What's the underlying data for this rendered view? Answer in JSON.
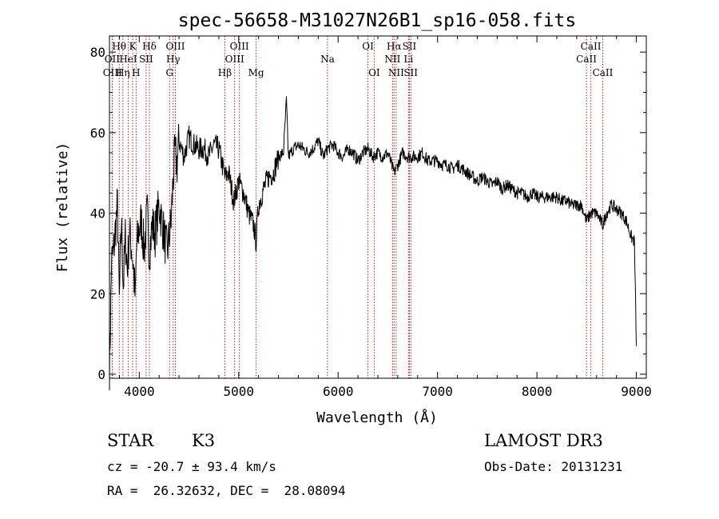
{
  "chart_data": {
    "type": "line",
    "title": "spec-56658-M31027N26B1_sp16-058.fits",
    "xlabel": "Wavelength (Å)",
    "ylabel": "Flux (relative)",
    "xlim": [
      3700,
      9100
    ],
    "ylim": [
      -1,
      84
    ],
    "xticks": [
      4000,
      5000,
      6000,
      7000,
      8000,
      9000
    ],
    "xtick_labels": [
      "4000",
      "5000",
      "6000",
      "7000",
      "8000",
      "9000"
    ],
    "yticks": [
      0,
      20,
      40,
      60,
      80
    ],
    "ytick_labels": [
      "0",
      "20",
      "40",
      "60",
      "80"
    ],
    "grid": false,
    "spectrum": {
      "x": [
        3700,
        3710,
        3720,
        3740,
        3760,
        3780,
        3800,
        3820,
        3840,
        3860,
        3880,
        3900,
        3920,
        3940,
        3960,
        3970,
        3990,
        4020,
        4050,
        4080,
        4101,
        4130,
        4160,
        4200,
        4240,
        4280,
        4300,
        4320,
        4340,
        4360,
        4380,
        4400,
        4450,
        4500,
        4550,
        4600,
        4650,
        4700,
        4750,
        4800,
        4861,
        4900,
        4950,
        5000,
        5050,
        5100,
        5150,
        5175,
        5200,
        5250,
        5300,
        5350,
        5400,
        5450,
        5480,
        5500,
        5550,
        5600,
        5650,
        5700,
        5750,
        5800,
        5850,
        5893,
        5950,
        6000,
        6050,
        6100,
        6150,
        6200,
        6250,
        6300,
        6350,
        6400,
        6450,
        6500,
        6563,
        6600,
        6650,
        6700,
        6750,
        6800,
        6850,
        6900,
        6950,
        7000,
        7050,
        7100,
        7150,
        7200,
        7250,
        7300,
        7350,
        7400,
        7450,
        7500,
        7550,
        7600,
        7650,
        7700,
        7750,
        7800,
        7850,
        7900,
        7950,
        8000,
        8050,
        8100,
        8150,
        8200,
        8250,
        8300,
        8350,
        8400,
        8450,
        8498,
        8542,
        8600,
        8662,
        8700,
        8750,
        8800,
        8850,
        8900,
        8950,
        8980,
        9000
      ],
      "y": [
        2,
        12,
        28,
        30,
        36,
        42,
        18,
        38,
        22,
        34,
        26,
        35,
        32,
        27,
        18,
        30,
        35,
        38,
        31,
        40,
        30,
        37,
        35,
        42,
        36,
        30,
        34,
        38,
        48,
        55,
        52,
        58,
        54,
        59,
        57,
        56,
        56,
        54,
        57,
        56,
        49,
        50,
        43,
        48,
        45,
        40,
        37,
        33,
        42,
        46,
        49,
        50,
        54,
        55,
        68,
        54,
        56,
        57,
        56,
        55,
        56,
        58,
        54,
        56,
        57,
        55,
        54,
        56,
        55,
        53,
        55,
        56,
        54,
        55,
        54,
        55,
        50,
        52,
        55,
        54,
        54,
        54,
        55,
        53,
        53,
        53,
        52,
        52,
        51,
        52,
        51,
        50,
        49,
        48,
        49,
        48,
        47,
        48,
        46,
        47,
        46,
        45,
        45,
        44,
        45,
        44,
        44,
        44,
        44,
        44,
        43,
        43,
        42,
        42,
        42,
        38,
        40,
        40,
        37,
        40,
        42,
        41,
        40,
        38,
        34,
        33,
        7
      ]
    },
    "lines": [
      {
        "label": "Hθ",
        "x": 3798,
        "row": 1
      },
      {
        "label": "OII",
        "x": 3727,
        "row": 2
      },
      {
        "label": "OIII",
        "x": 3730,
        "row": 3
      },
      {
        "label": "Hη",
        "x": 3835,
        "row": 3
      },
      {
        "label": "HeI",
        "x": 3889,
        "row": 2
      },
      {
        "label": "K",
        "x": 3934,
        "row": 1
      },
      {
        "label": "SII",
        "x": 4069,
        "row": 2
      },
      {
        "label": "H",
        "x": 3968,
        "row": 3
      },
      {
        "label": "Hδ",
        "x": 4102,
        "row": 1
      },
      {
        "label": "OIII",
        "x": 4363,
        "row": 1
      },
      {
        "label": "Hγ",
        "x": 4341,
        "row": 2
      },
      {
        "label": "G",
        "x": 4305,
        "row": 3
      },
      {
        "label": "OIII",
        "x": 5007,
        "row": 1
      },
      {
        "label": "OIII",
        "x": 4959,
        "row": 2
      },
      {
        "label": "Hβ",
        "x": 4861,
        "row": 3
      },
      {
        "label": "Mg",
        "x": 5175,
        "row": 3
      },
      {
        "label": "Na",
        "x": 5893,
        "row": 2
      },
      {
        "label": "OI",
        "x": 6300,
        "row": 1
      },
      {
        "label": "OI",
        "x": 6363,
        "row": 3
      },
      {
        "label": "Hα",
        "x": 6563,
        "row": 1
      },
      {
        "label": "NII",
        "x": 6548,
        "row": 2
      },
      {
        "label": "NII",
        "x": 6584,
        "row": 3
      },
      {
        "label": "SII",
        "x": 6717,
        "row": 1
      },
      {
        "label": "Li",
        "x": 6708,
        "row": 2
      },
      {
        "label": "SII",
        "x": 6731,
        "row": 3
      },
      {
        "label": "CaII",
        "x": 8542,
        "row": 1
      },
      {
        "label": "CaII",
        "x": 8498,
        "row": 2
      },
      {
        "label": "CaII",
        "x": 8662,
        "row": 3
      }
    ],
    "line_color": "#b22222"
  },
  "info": {
    "object_class": "STAR",
    "subclass": "K3",
    "survey": "LAMOST DR3",
    "cz": "cz = -20.7 ± 93.4 km/s",
    "obs_date": "Obs-Date: 20131231",
    "coords": "RA =  26.32632, DEC =  28.08094"
  }
}
